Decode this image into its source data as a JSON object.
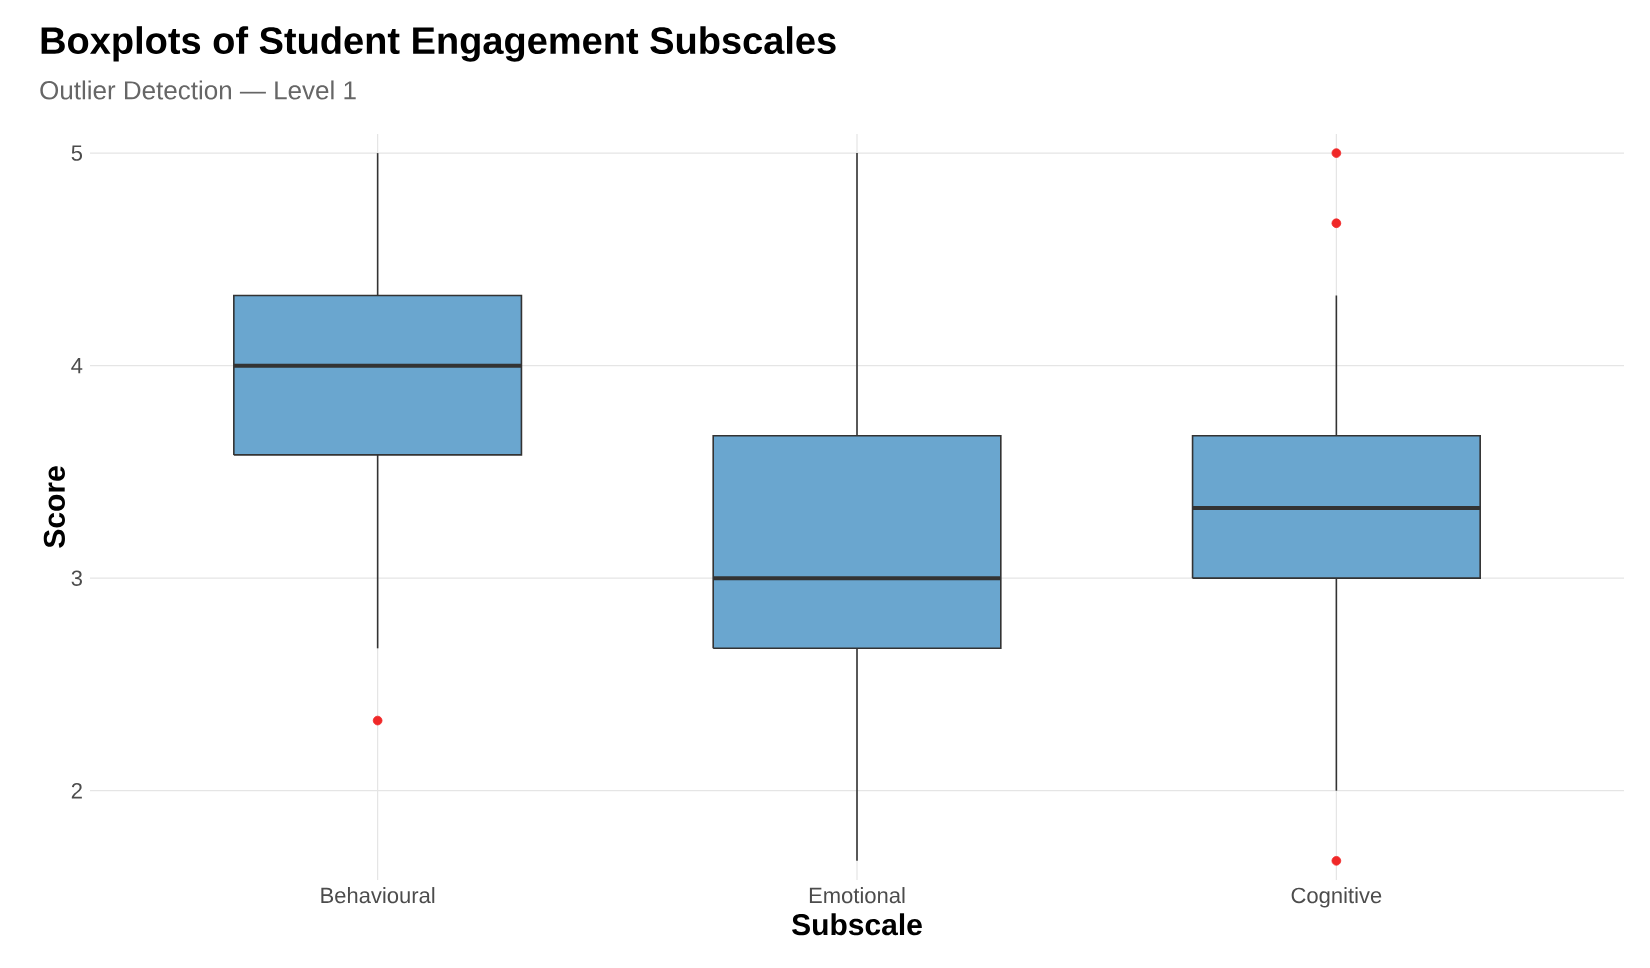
{
  "chart_data": {
    "type": "box",
    "title": "Boxplots of Student Engagement Subscales",
    "subtitle": "Outlier Detection — Level 1",
    "xlabel": "Subscale",
    "ylabel": "Score",
    "categories": [
      "Behavioural",
      "Emotional",
      "Cognitive"
    ],
    "color": "#6aa6cf",
    "boxes": [
      {
        "low": 2.67,
        "q1": 3.58,
        "median": 4,
        "q3": 4.33,
        "high": 5,
        "outliers": [
          2.33
        ]
      },
      {
        "low": 1.67,
        "q1": 2.67,
        "median": 3,
        "q3": 3.67,
        "high": 5
      },
      {
        "low": 2,
        "q1": 3,
        "median": 3.33,
        "q3": 3.67,
        "high": 4.33,
        "outliers": [
          5,
          4.67,
          1.67
        ]
      }
    ],
    "ylim": [
      1.58,
      5.09
    ],
    "yticks": [
      2,
      3,
      4,
      5
    ],
    "grid": true
  }
}
